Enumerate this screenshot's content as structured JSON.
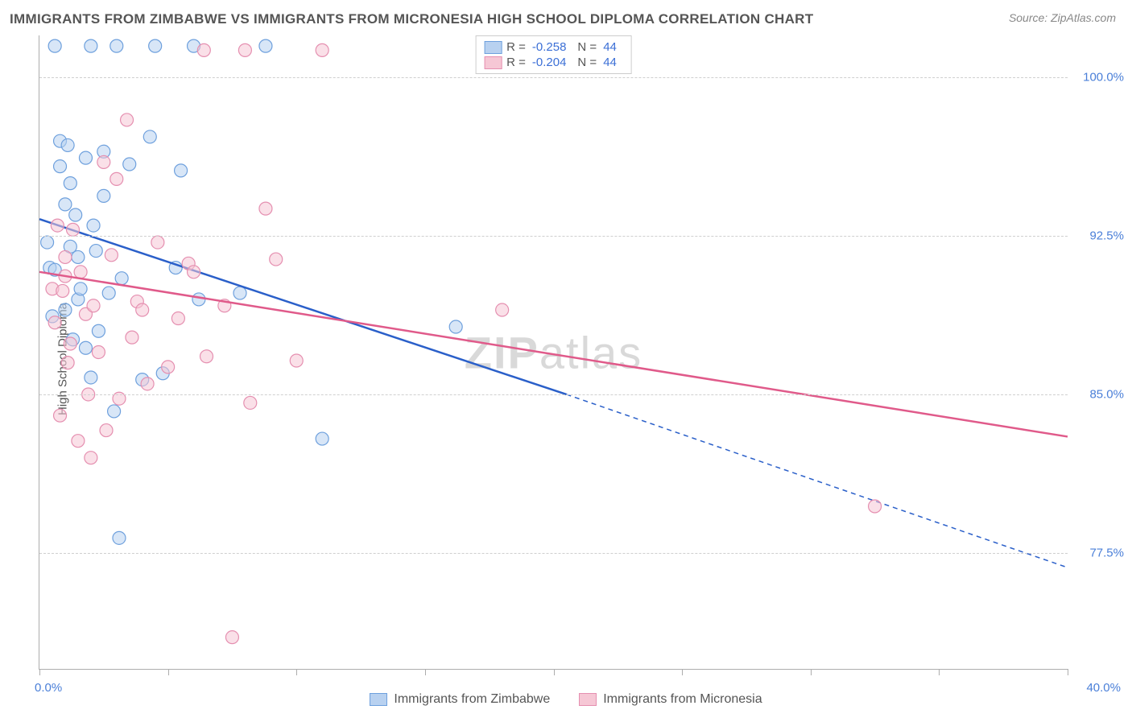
{
  "title": "IMMIGRANTS FROM ZIMBABWE VS IMMIGRANTS FROM MICRONESIA HIGH SCHOOL DIPLOMA CORRELATION CHART",
  "source": "Source: ZipAtlas.com",
  "ylabel": "High School Diploma",
  "watermark_a": "ZIP",
  "watermark_b": "atlas",
  "chart": {
    "type": "scatter",
    "xlim": [
      0,
      40
    ],
    "ylim": [
      72,
      102
    ],
    "xtick_positions": [
      0,
      5,
      10,
      15,
      20,
      25,
      30,
      35,
      40
    ],
    "xlim_labels": [
      "0.0%",
      "40.0%"
    ],
    "yticks": [
      77.5,
      85.0,
      92.5,
      100.0
    ],
    "ytick_labels": [
      "77.5%",
      "85.0%",
      "92.5%",
      "100.0%"
    ],
    "background_color": "#ffffff",
    "grid_color": "#cfcfcf",
    "axis_color": "#adadad",
    "tick_label_color": "#4a7fd8",
    "marker_radius": 8,
    "marker_opacity": 0.55,
    "series": [
      {
        "name": "Immigrants from Zimbabwe",
        "color_fill": "#b8d1f0",
        "color_stroke": "#6ea0dd",
        "line_color": "#2a5fc9",
        "r": -0.258,
        "n": 44,
        "regression": {
          "x1": 0,
          "y1": 93.3,
          "x2": 20.5,
          "y2": 85.0,
          "x2_ext": 40,
          "y2_ext": 76.8
        },
        "points": [
          [
            0.3,
            92.2
          ],
          [
            0.4,
            91.0
          ],
          [
            0.5,
            88.7
          ],
          [
            0.6,
            90.9
          ],
          [
            0.8,
            95.8
          ],
          [
            0.8,
            97.0
          ],
          [
            1.0,
            94.0
          ],
          [
            1.0,
            89.0
          ],
          [
            1.1,
            96.8
          ],
          [
            1.2,
            92.0
          ],
          [
            1.2,
            95.0
          ],
          [
            1.3,
            87.6
          ],
          [
            1.4,
            93.5
          ],
          [
            1.5,
            91.5
          ],
          [
            1.5,
            89.5
          ],
          [
            1.6,
            90.0
          ],
          [
            1.8,
            96.2
          ],
          [
            1.8,
            87.2
          ],
          [
            2.0,
            101.5
          ],
          [
            2.0,
            85.8
          ],
          [
            2.2,
            91.8
          ],
          [
            2.3,
            88.0
          ],
          [
            2.5,
            94.4
          ],
          [
            2.5,
            96.5
          ],
          [
            2.7,
            89.8
          ],
          [
            2.9,
            84.2
          ],
          [
            3.0,
            101.5
          ],
          [
            3.1,
            78.2
          ],
          [
            3.2,
            90.5
          ],
          [
            3.5,
            95.9
          ],
          [
            4.0,
            85.7
          ],
          [
            4.3,
            97.2
          ],
          [
            4.5,
            101.5
          ],
          [
            4.8,
            86.0
          ],
          [
            5.3,
            91.0
          ],
          [
            5.5,
            95.6
          ],
          [
            6.0,
            101.5
          ],
          [
            6.2,
            89.5
          ],
          [
            7.8,
            89.8
          ],
          [
            8.8,
            101.5
          ],
          [
            11.0,
            82.9
          ],
          [
            16.2,
            88.2
          ],
          [
            0.6,
            101.5
          ],
          [
            2.1,
            93.0
          ]
        ]
      },
      {
        "name": "Immigrants from Micronesia",
        "color_fill": "#f6c7d5",
        "color_stroke": "#e58fb0",
        "line_color": "#e05a8a",
        "r": -0.204,
        "n": 44,
        "regression": {
          "x1": 0,
          "y1": 90.8,
          "x2": 40,
          "y2": 83.0
        },
        "points": [
          [
            0.5,
            90.0
          ],
          [
            0.6,
            88.4
          ],
          [
            0.8,
            84.0
          ],
          [
            0.9,
            89.9
          ],
          [
            1.0,
            90.6
          ],
          [
            1.1,
            86.5
          ],
          [
            1.2,
            87.4
          ],
          [
            1.3,
            92.8
          ],
          [
            1.5,
            82.8
          ],
          [
            1.6,
            90.8
          ],
          [
            1.8,
            88.8
          ],
          [
            1.9,
            85.0
          ],
          [
            2.1,
            89.2
          ],
          [
            2.3,
            87.0
          ],
          [
            2.5,
            96.0
          ],
          [
            2.6,
            83.3
          ],
          [
            2.8,
            91.6
          ],
          [
            3.0,
            95.2
          ],
          [
            3.1,
            84.8
          ],
          [
            3.4,
            98.0
          ],
          [
            3.6,
            87.7
          ],
          [
            3.8,
            89.4
          ],
          [
            4.2,
            85.5
          ],
          [
            4.6,
            92.2
          ],
          [
            5.0,
            86.3
          ],
          [
            5.4,
            88.6
          ],
          [
            5.8,
            91.2
          ],
          [
            6.0,
            90.8
          ],
          [
            6.4,
            101.3
          ],
          [
            6.5,
            86.8
          ],
          [
            7.2,
            89.2
          ],
          [
            7.5,
            73.5
          ],
          [
            8.0,
            101.3
          ],
          [
            8.2,
            84.6
          ],
          [
            8.8,
            93.8
          ],
          [
            9.2,
            91.4
          ],
          [
            11.0,
            101.3
          ],
          [
            10.0,
            86.6
          ],
          [
            18.0,
            89.0
          ],
          [
            32.5,
            79.7
          ],
          [
            4.0,
            89.0
          ],
          [
            2.0,
            82.0
          ],
          [
            1.0,
            91.5
          ],
          [
            0.7,
            93.0
          ]
        ]
      }
    ]
  },
  "legend_top": {
    "r_label": "R =",
    "n_label": "N ="
  }
}
